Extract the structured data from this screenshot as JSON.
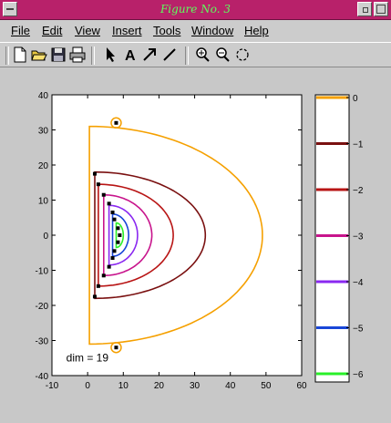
{
  "window": {
    "title": "Figure No. 3"
  },
  "menu": [
    "File",
    "Edit",
    "View",
    "Insert",
    "Tools",
    "Window",
    "Help"
  ],
  "toolbar": {
    "icons": [
      "new-file-icon",
      "open-folder-icon",
      "save-icon",
      "print-icon",
      "arrow-pointer-icon",
      "insert-text-icon",
      "insert-arrow-icon",
      "insert-line-icon",
      "zoom-in-icon",
      "zoom-out-icon",
      "rotate-icon"
    ]
  },
  "chart_data": {
    "type": "contour",
    "annotation": "dim = 19",
    "xlim": [
      -10,
      60
    ],
    "ylim": [
      -40,
      40
    ],
    "x_ticks": [
      -10,
      0,
      10,
      20,
      30,
      40,
      50,
      60
    ],
    "y_ticks": [
      -40,
      -30,
      -20,
      -10,
      0,
      10,
      20,
      30,
      40
    ],
    "colorbar": {
      "levels": [
        0,
        -1,
        -2,
        -3,
        -4,
        -5,
        -6
      ],
      "labels": [
        "0",
        "−1",
        "−2",
        "−3",
        "−4",
        "−5",
        "−6"
      ],
      "colors": [
        "#f5a000",
        "#7a1010",
        "#b81414",
        "#c8148c",
        "#8a28f0",
        "#1846d8",
        "#28f028"
      ]
    },
    "contours": [
      {
        "level": 0,
        "color": "#f5a000",
        "x0": 0.5,
        "xmax": 49,
        "yext": 31
      },
      {
        "level": -1,
        "color": "#7a1010",
        "x0": 2,
        "xmax": 33,
        "yext": 18
      },
      {
        "level": -2,
        "color": "#b81414",
        "x0": 3,
        "xmax": 24,
        "yext": 14.5
      },
      {
        "level": -3,
        "color": "#c8148c",
        "x0": 4.5,
        "xmax": 18,
        "yext": 11.5
      },
      {
        "level": -4,
        "color": "#8a28f0",
        "x0": 6,
        "xmax": 14,
        "yext": 8.5
      },
      {
        "level": -5,
        "color": "#1846d8",
        "x0": 7,
        "xmax": 11.5,
        "yext": 6
      },
      {
        "level": -6,
        "color": "#28f028",
        "x0": 8,
        "xmax": 10,
        "yext": 3.5
      }
    ],
    "singularities": [
      {
        "x": 8,
        "y": 32,
        "ring": true
      },
      {
        "x": 8,
        "y": -32,
        "ring": true
      },
      {
        "x": 2,
        "y": 17.5
      },
      {
        "x": 2,
        "y": -17.5
      },
      {
        "x": 3,
        "y": 14.5
      },
      {
        "x": 3,
        "y": -14.5
      },
      {
        "x": 4.5,
        "y": 11.5
      },
      {
        "x": 4.5,
        "y": -11.5
      },
      {
        "x": 6,
        "y": 9
      },
      {
        "x": 6,
        "y": -9
      },
      {
        "x": 7,
        "y": 6.5
      },
      {
        "x": 7,
        "y": -6.5
      },
      {
        "x": 7.5,
        "y": 4.5
      },
      {
        "x": 7.5,
        "y": -4.5
      },
      {
        "x": 8.5,
        "y": 2
      },
      {
        "x": 8.5,
        "y": -2
      },
      {
        "x": 9,
        "y": 0
      }
    ]
  }
}
